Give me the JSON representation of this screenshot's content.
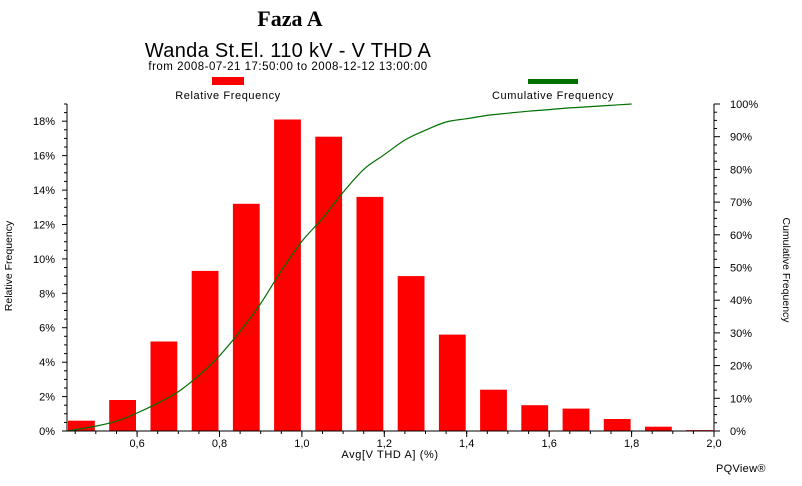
{
  "figure_title": "Faza A",
  "watermark": "PQView®",
  "colors": {
    "bar": "#ff0000",
    "cumulative_line": "#007000",
    "axis": "#000000"
  },
  "chart_data": {
    "type": "bar",
    "title": "Wanda St.El. 110 kV - V THD A",
    "subtitle": "from 2008-07-21 17:50:00 to 2008-12-12 13:00:00",
    "xlabel": "Avg[V THD A] (%)",
    "ylabel": "Relative Frequency",
    "y2label": "Cumulative Frequency",
    "legend_position": "top",
    "xlim": [
      0.43,
      2.0
    ],
    "ylim": [
      0,
      19
    ],
    "y2lim": [
      0,
      100
    ],
    "x_ticks": [
      0.6,
      0.8,
      1.0,
      1.2,
      1.4,
      1.6,
      1.8,
      2.0
    ],
    "x_tick_labels": [
      "0,6",
      "0,8",
      "1,0",
      "1,2",
      "1,4",
      "1,6",
      "1,8",
      "2,0"
    ],
    "y_ticks": [
      0,
      2,
      4,
      6,
      8,
      10,
      12,
      14,
      16,
      18
    ],
    "y_tick_labels": [
      "0%",
      "2%",
      "4%",
      "6%",
      "8%",
      "10%",
      "12%",
      "14%",
      "16%",
      "18%"
    ],
    "y2_ticks": [
      0,
      10,
      20,
      30,
      40,
      50,
      60,
      70,
      80,
      90,
      100
    ],
    "y2_tick_labels": [
      "0%",
      "10%",
      "20%",
      "30%",
      "40%",
      "50%",
      "60%",
      "70%",
      "80%",
      "90%",
      "100%"
    ],
    "bar_width": 0.065,
    "series": [
      {
        "name": "Relative Frequency",
        "type": "bar",
        "x": [
          0.465,
          0.565,
          0.665,
          0.765,
          0.865,
          0.965,
          1.065,
          1.165,
          1.265,
          1.365,
          1.465,
          1.565,
          1.665,
          1.765,
          1.865,
          1.965
        ],
        "values": [
          0.6,
          1.8,
          5.2,
          9.3,
          13.2,
          18.1,
          17.1,
          13.6,
          9.0,
          5.6,
          2.4,
          1.5,
          1.3,
          0.7,
          0.25,
          0.05
        ]
      },
      {
        "name": "Cumulative Frequency",
        "type": "line",
        "axis": "right",
        "x": [
          0.43,
          0.5,
          0.55,
          0.6,
          0.65,
          0.7,
          0.75,
          0.8,
          0.85,
          0.9,
          0.95,
          1.0,
          1.05,
          1.1,
          1.15,
          1.2,
          1.25,
          1.3,
          1.35,
          1.4,
          1.45,
          1.5,
          1.55,
          1.6,
          1.65,
          1.7,
          1.75,
          1.8
        ],
        "values": [
          0.0,
          1.5,
          3.0,
          5.5,
          8.5,
          12.0,
          17.0,
          23.0,
          30.5,
          39.0,
          49.0,
          58.0,
          65.0,
          73.0,
          80.0,
          84.5,
          89.0,
          92.0,
          94.5,
          95.5,
          96.5,
          97.2,
          97.8,
          98.3,
          98.8,
          99.2,
          99.6,
          100.0
        ]
      }
    ]
  }
}
